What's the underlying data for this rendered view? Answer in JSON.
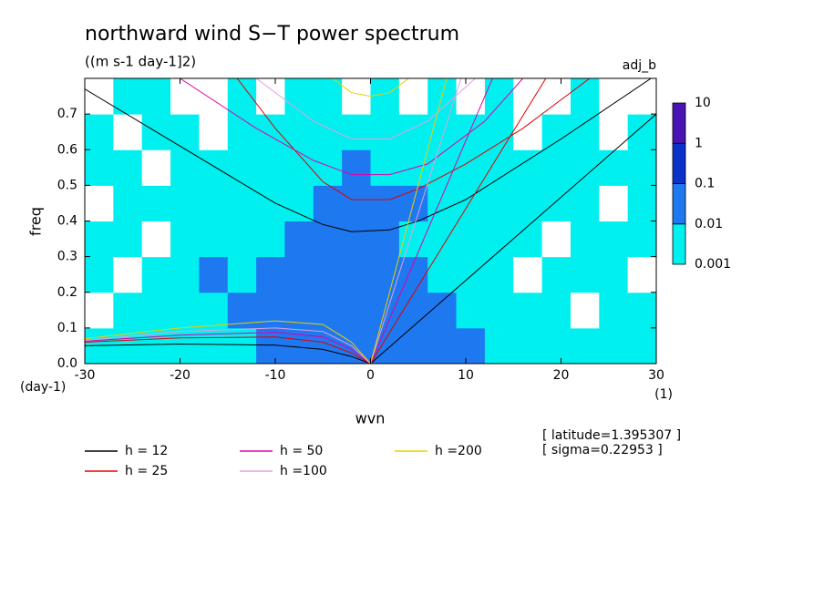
{
  "chart_data": {
    "type": "contour",
    "title": "northward wind S−T power spectrum",
    "subtitle": "((m s-1 day-1]2)",
    "label": "adj_b",
    "x_label": "wvn",
    "y_label": "freq",
    "x_unit": "(1)",
    "y_unit": "(day-1)",
    "annotations": [
      "[ latitude=1.395307 ]",
      "[ sigma=0.22953 ]"
    ],
    "xlim": [
      -30,
      30
    ],
    "ylim": [
      0,
      0.8
    ],
    "xticks": [
      -30,
      -20,
      -10,
      0,
      10,
      20,
      30
    ],
    "yticks": [
      {
        "value": 0,
        "label": "0.0"
      },
      0.1,
      0.2,
      0.3,
      0.4,
      0.5,
      0.6,
      0.7
    ],
    "x_edges": [
      -30,
      -27,
      -24,
      -21,
      -18,
      -15,
      -12,
      -9,
      -6,
      -3,
      0,
      3,
      6,
      9,
      12,
      15,
      18,
      21,
      24,
      27,
      30
    ],
    "y_edges": [
      0,
      0.1,
      0.2,
      0.3,
      0.4,
      0.5,
      0.6,
      0.7,
      0.8
    ],
    "z": [
      [
        0.005,
        0.005,
        0.005,
        0.005,
        0.005,
        0.005,
        0.05,
        0.05,
        0.05,
        0.05,
        0.05,
        0.05,
        0.05,
        0.05,
        0.005,
        0.005,
        0.005,
        0.005,
        0.005,
        0.005
      ],
      [
        0.0005,
        0.005,
        0.005,
        0.005,
        0.005,
        0.05,
        0.05,
        0.05,
        0.05,
        0.05,
        0.05,
        0.05,
        0.05,
        0.005,
        0.005,
        0.005,
        0.005,
        0.0005,
        0.005,
        0.005
      ],
      [
        0.005,
        0.0005,
        0.005,
        0.005,
        0.05,
        0.005,
        0.05,
        0.05,
        0.05,
        0.05,
        0.05,
        0.05,
        0.005,
        0.005,
        0.005,
        0.0005,
        0.005,
        0.005,
        0.005,
        0.0005
      ],
      [
        0.005,
        0.005,
        0.0005,
        0.005,
        0.005,
        0.005,
        0.005,
        0.05,
        0.05,
        0.05,
        0.05,
        0.005,
        0.005,
        0.005,
        0.005,
        0.005,
        0.0005,
        0.005,
        0.005,
        0.005
      ],
      [
        0.0005,
        0.005,
        0.005,
        0.005,
        0.005,
        0.005,
        0.005,
        0.005,
        0.05,
        0.05,
        0.05,
        0.05,
        0.005,
        0.005,
        0.005,
        0.005,
        0.005,
        0.005,
        0.0005,
        0.005
      ],
      [
        0.005,
        0.005,
        0.0005,
        0.005,
        0.005,
        0.005,
        0.005,
        0.005,
        0.005,
        0.05,
        0.005,
        0.005,
        0.005,
        0.005,
        0.005,
        0.005,
        0.005,
        0.005,
        0.005,
        0.005
      ],
      [
        0.005,
        0.0005,
        0.005,
        0.005,
        0.0005,
        0.005,
        0.005,
        0.005,
        0.005,
        0.005,
        0.005,
        0.005,
        0.005,
        0.005,
        0.005,
        0.0005,
        0.005,
        0.005,
        0.0005,
        0.005
      ],
      [
        0.0005,
        0.005,
        0.005,
        0.0005,
        0.0005,
        0.005,
        0.0005,
        0.005,
        0.005,
        0.0005,
        0.005,
        0.0005,
        0.005,
        0.0005,
        0.005,
        0.0005,
        0.0005,
        0.005,
        0.0005,
        0.0005
      ]
    ],
    "levels": [
      0.001,
      0.01,
      0.1,
      1,
      10
    ],
    "level_colors": [
      "#00f0f0",
      "#1e78f0",
      "#0a32c8",
      "#4a14b4"
    ],
    "series": [
      {
        "name": "h = 12",
        "color": "#000000",
        "x": [
          0,
          30,
          null,
          -30,
          -20,
          -10,
          -5,
          -2,
          2,
          5,
          10,
          20,
          30,
          null,
          -30,
          -20,
          -10,
          -5,
          -2,
          0
        ],
        "values": [
          0,
          0.7,
          null,
          0.77,
          0.61,
          0.45,
          0.39,
          0.37,
          0.375,
          0.4,
          0.46,
          0.63,
          0.81,
          null,
          0.05,
          0.055,
          0.052,
          0.04,
          0.02,
          0
        ]
      },
      {
        "name": "h = 25",
        "color": "#e00000",
        "x": [
          0,
          18.4,
          null,
          -14,
          -10,
          -5,
          -2,
          2,
          5,
          10,
          16,
          23,
          null,
          -30,
          -20,
          -10,
          -5,
          -2,
          0
        ],
        "values": [
          0,
          0.8,
          null,
          0.8,
          0.66,
          0.51,
          0.46,
          0.46,
          0.49,
          0.56,
          0.66,
          0.8,
          null,
          0.06,
          0.072,
          0.075,
          0.06,
          0.03,
          0
        ]
      },
      {
        "name": "h = 50",
        "color": "#dd00aa",
        "x": [
          0,
          12.8,
          null,
          -20,
          -12,
          -6,
          -2,
          2,
          6,
          12,
          16,
          null,
          -30,
          -20,
          -10,
          -5,
          -2,
          0
        ],
        "values": [
          0,
          0.8,
          null,
          0.8,
          0.66,
          0.57,
          0.53,
          0.53,
          0.56,
          0.68,
          0.8,
          null,
          0.063,
          0.08,
          0.088,
          0.075,
          0.04,
          0
        ]
      },
      {
        "name": "h =100",
        "color": "#e0a0e0",
        "x": [
          0,
          9.5,
          null,
          -12,
          -6,
          -2,
          2,
          6,
          11,
          null,
          -30,
          -20,
          -10,
          -5,
          -2,
          0
        ],
        "values": [
          0,
          0.8,
          null,
          0.8,
          0.68,
          0.63,
          0.63,
          0.68,
          0.8,
          null,
          0.065,
          0.09,
          0.1,
          0.09,
          0.05,
          0
        ]
      },
      {
        "name": "h =200",
        "color": "#e8d000",
        "x": [
          0,
          8,
          null,
          -4,
          -2,
          0,
          2,
          4,
          null,
          -30,
          -20,
          -10,
          -5,
          -2,
          0
        ],
        "values": [
          0,
          0.8,
          null,
          0.8,
          0.76,
          0.75,
          0.76,
          0.8,
          null,
          0.07,
          0.1,
          0.12,
          0.11,
          0.06,
          0
        ]
      }
    ]
  }
}
